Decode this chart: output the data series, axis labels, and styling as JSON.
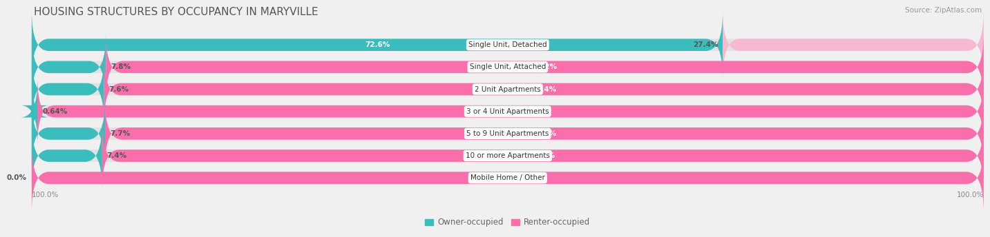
{
  "title": "HOUSING STRUCTURES BY OCCUPANCY IN MARYVILLE",
  "source": "Source: ZipAtlas.com",
  "categories": [
    "Single Unit, Detached",
    "Single Unit, Attached",
    "2 Unit Apartments",
    "3 or 4 Unit Apartments",
    "5 to 9 Unit Apartments",
    "10 or more Apartments",
    "Mobile Home / Other"
  ],
  "owner_pct": [
    72.6,
    7.8,
    7.6,
    0.64,
    7.7,
    7.4,
    0.0
  ],
  "renter_pct": [
    27.4,
    92.2,
    92.4,
    99.4,
    92.3,
    92.6,
    100.0
  ],
  "owner_color": "#3bbcbd",
  "renter_color": "#f96fac",
  "renter_light_color": "#f7b8d2",
  "background_color": "#f0f0f0",
  "bar_bg_color": "#e2e2e2",
  "title_fontsize": 11,
  "label_fontsize": 7.5,
  "tick_fontsize": 7.5,
  "legend_fontsize": 8.5,
  "source_fontsize": 7.5
}
